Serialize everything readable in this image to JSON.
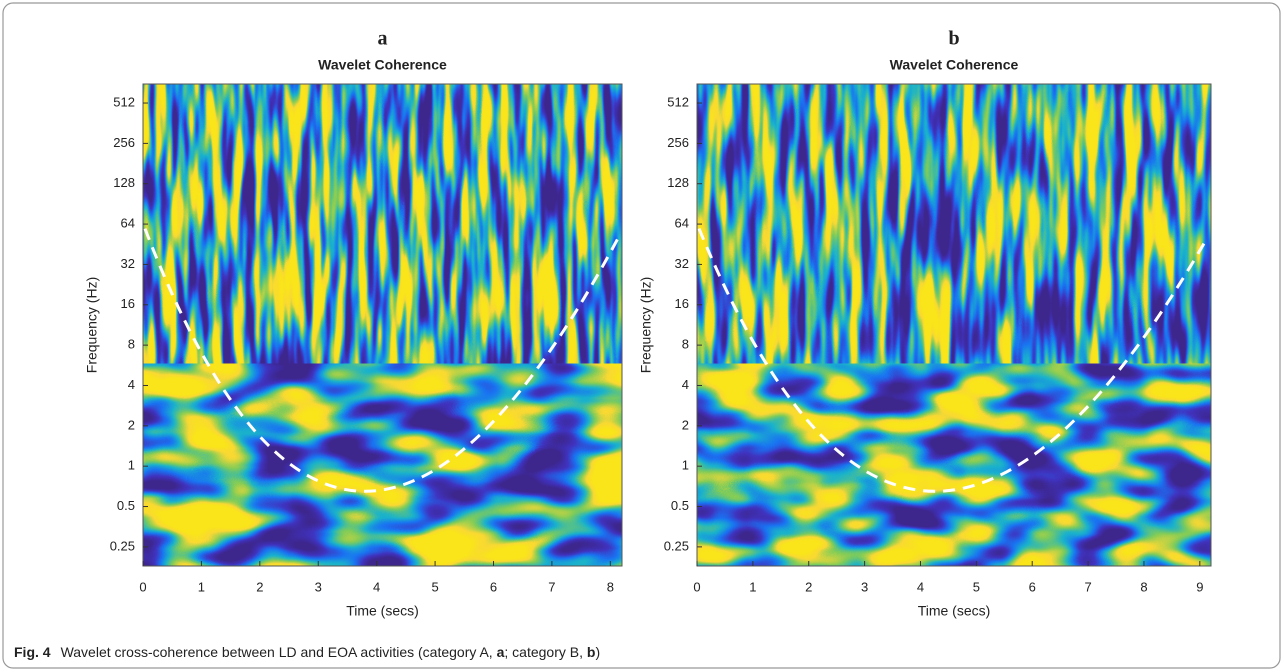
{
  "chart_data": [
    {
      "type": "heatmap",
      "panel_label": "a",
      "title": "Wavelet Coherence",
      "x_label": "Time (secs)",
      "y_label": "Frequency (Hz)",
      "xlim": [
        0,
        8.2
      ],
      "xticks": [
        0,
        1,
        2,
        3,
        4,
        5,
        6,
        7,
        8
      ],
      "ylim": [
        0.18,
        710
      ],
      "y_scale": "log",
      "yticks": [
        512,
        256,
        128,
        64,
        32,
        16,
        8,
        4,
        2,
        1,
        0.5,
        0.25
      ]
    },
    {
      "type": "heatmap",
      "panel_label": "b",
      "title": "Wavelet Coherence",
      "x_label": "Time (secs)",
      "y_label": "Frequency (Hz)",
      "xlim": [
        0,
        9.2
      ],
      "xticks": [
        0,
        1,
        2,
        3,
        4,
        5,
        6,
        7,
        8,
        9
      ],
      "ylim": [
        0.18,
        710
      ],
      "y_scale": "log",
      "yticks": [
        512,
        256,
        128,
        64,
        32,
        16,
        8,
        4,
        2,
        1,
        0.5,
        0.25
      ]
    }
  ],
  "caption": {
    "label": "Fig. 4",
    "parts": [
      "Wavelet cross-coherence between LD and EOA activities (category A, ",
      "a",
      "; category B, ",
      "b",
      ")"
    ]
  }
}
